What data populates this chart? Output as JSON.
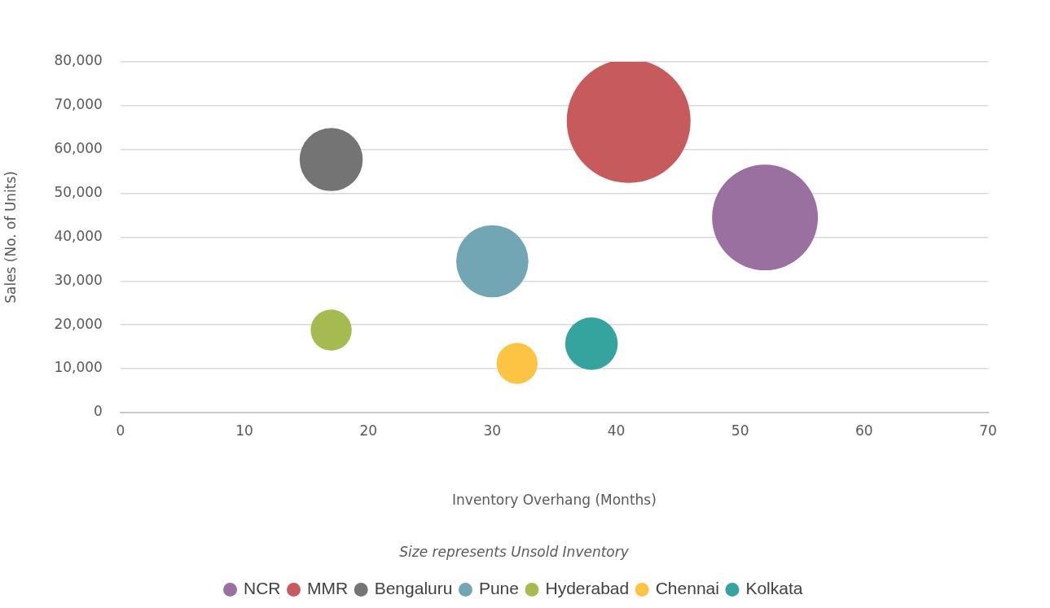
{
  "chart_data": {
    "type": "bubble",
    "xlabel": "Inventory Overhang (Months)",
    "ylabel": "Sales (No. of Units)",
    "annotations": [
      "Size represents Unsold Inventory"
    ],
    "xlim": [
      0,
      70
    ],
    "xticks": [
      0,
      10,
      20,
      30,
      40,
      50,
      60,
      70
    ],
    "ylim": [
      0,
      80000
    ],
    "yticks": [
      {
        "value": 0,
        "label": "0"
      },
      {
        "value": 10000,
        "label": "10,000"
      },
      {
        "value": 20000,
        "label": "20,000"
      },
      {
        "value": 30000,
        "label": "30,000"
      },
      {
        "value": 40000,
        "label": "40,000"
      },
      {
        "value": 50000,
        "label": "50,000"
      },
      {
        "value": 60000,
        "label": "60,000"
      },
      {
        "value": 70000,
        "label": "70,000"
      },
      {
        "value": 80000,
        "label": "80,000"
      }
    ],
    "grid": "y",
    "legend": "bottom",
    "marker": "circle",
    "series": [
      {
        "name": "NCR",
        "color": "#9a70a0",
        "x": [
          52
        ],
        "values": [
          44500
        ],
        "sizes": [
          0.73
        ]
      },
      {
        "name": "MMR",
        "color": "#c75a5c",
        "x": [
          41
        ],
        "values": [
          66500
        ],
        "sizes": [
          1
        ]
      },
      {
        "name": "Bengaluru",
        "color": "#747474",
        "x": [
          17
        ],
        "values": [
          57700
        ],
        "sizes": [
          0.26
        ]
      },
      {
        "name": "Pune",
        "color": "#72a6b4",
        "x": [
          30
        ],
        "values": [
          34500
        ],
        "sizes": [
          0.34
        ]
      },
      {
        "name": "Hyderabad",
        "color": "#a6bb4f",
        "x": [
          17
        ],
        "values": [
          18800
        ],
        "sizes": [
          0.11
        ]
      },
      {
        "name": "Chennai",
        "color": "#fdc444",
        "x": [
          32
        ],
        "values": [
          11200
        ],
        "sizes": [
          0.11
        ]
      },
      {
        "name": "Kolkata",
        "color": "#35a49f",
        "x": [
          38
        ],
        "values": [
          15700
        ],
        "sizes": [
          0.18
        ]
      }
    ]
  }
}
